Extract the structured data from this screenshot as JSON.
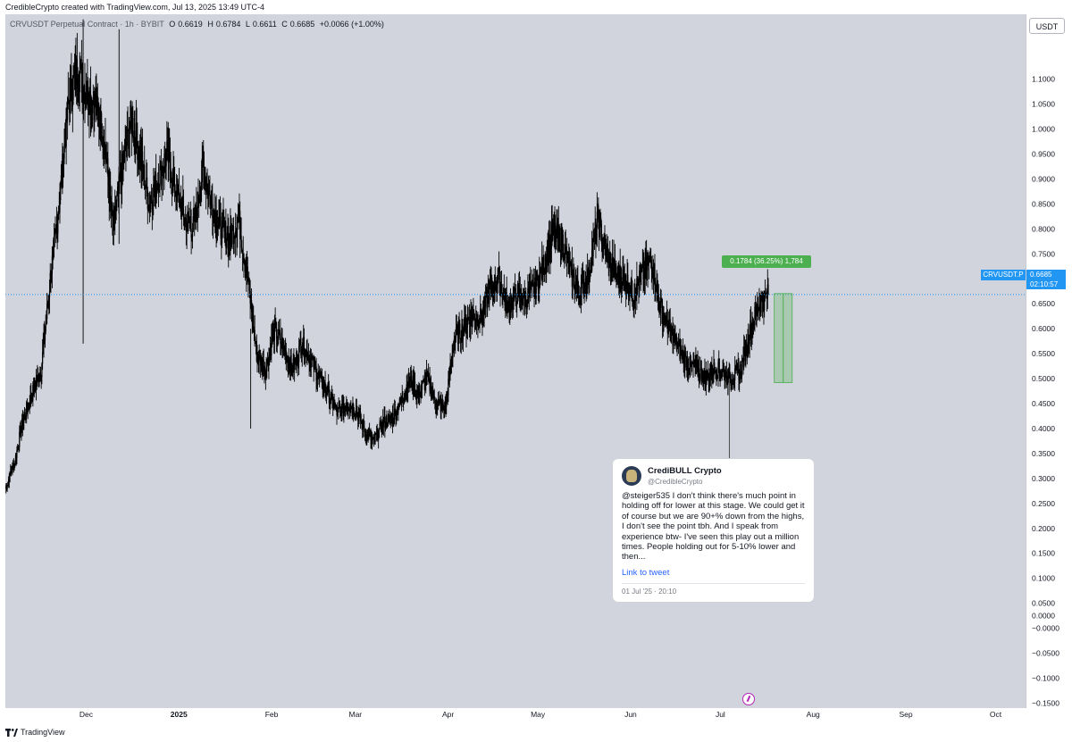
{
  "header": {
    "credit": "CredibleCrypto created with TradingView.com, Jul 13, 2025 13:49 UTC-4"
  },
  "legend": {
    "symbol": "CRVUSDT Perpetual Contract · 1h · BYBIT",
    "o_label": "O",
    "o": "0.6619",
    "h_label": "H",
    "h": "0.6784",
    "l_label": "L",
    "l": "0.6611",
    "c_label": "C",
    "c": "0.6685",
    "change": "+0.0066 (+1.00%)"
  },
  "axis": {
    "currency": "USDT",
    "last_price": "0.6685",
    "countdown": "02:10:57",
    "symbol_tag": "CRVUSDT.P"
  },
  "measure": {
    "label": "0.1784 (36.25%) 1,784"
  },
  "tweet": {
    "name": "CrediBULL Crypto",
    "handle": "@CredibleCrypto",
    "text": "@steiger535 I don't think there's much point in holding off for lower at this stage. We could get it of course but we are 90+% down from the highs, I don't see the point tbh. And I speak from experience btw- I've seen this play out a million times. People holding out for 5-10% lower and then...",
    "link": "Link to tweet",
    "date": "01 Jul '25 · 20:10"
  },
  "footer": {
    "brand": "TradingView"
  },
  "colors": {
    "plot_bg": "#d1d4dc",
    "candle": "#000000",
    "accent": "#2196f3",
    "measure": "#4caf50"
  },
  "chart_data": {
    "type": "line",
    "title": "",
    "xlabel": "",
    "ylabel": "",
    "ylim": [
      -0.16,
      1.23
    ],
    "y_ticks": [
      "1.1000",
      "1.0500",
      "1.0000",
      "0.9500",
      "0.9000",
      "0.8500",
      "0.8000",
      "0.7500",
      "0.7000",
      "0.6500",
      "0.6000",
      "0.5500",
      "0.5000",
      "0.4500",
      "0.4000",
      "0.3500",
      "0.3000",
      "0.2500",
      "0.2000",
      "0.1500",
      "0.1000",
      "0.0500",
      "0.0000",
      "−0.0000",
      "−0.0500",
      "−0.1000",
      "−0.1500"
    ],
    "y_tick_values": [
      1.1,
      1.05,
      1.0,
      0.95,
      0.9,
      0.85,
      0.8,
      0.75,
      0.7,
      0.65,
      0.6,
      0.55,
      0.5,
      0.45,
      0.4,
      0.35,
      0.3,
      0.25,
      0.2,
      0.15,
      0.1,
      0.05,
      0.0,
      0.0,
      -0.05,
      -0.1,
      -0.15
    ],
    "x_ticks": [
      "Dec",
      "2025",
      "Feb",
      "Mar",
      "Apr",
      "May",
      "Jun",
      "Jul",
      "Aug",
      "Sep",
      "Oct"
    ],
    "x_tick_days": [
      0,
      31,
      62,
      90,
      121,
      151,
      182,
      212,
      243,
      274,
      304
    ],
    "x_range_days": [
      -27,
      314
    ],
    "series": [
      {
        "x": [
          -27,
          -24,
          -21,
          -18,
          -15,
          -12,
          -9,
          -6,
          -3,
          0,
          3,
          6,
          9,
          12,
          15,
          18,
          21,
          24,
          27,
          30,
          33,
          36,
          39,
          42,
          45,
          48,
          51,
          54,
          57,
          60,
          63,
          66,
          69,
          72,
          75,
          78,
          81,
          84,
          87,
          90,
          93,
          96,
          99,
          102,
          105,
          108,
          111,
          114,
          117,
          120,
          123,
          126,
          129,
          132,
          135,
          138,
          141,
          144,
          147,
          150,
          153,
          156,
          159,
          162,
          165,
          168,
          171,
          174,
          177,
          180,
          183,
          186,
          189,
          192,
          195,
          198,
          201,
          204,
          207,
          210,
          213,
          216,
          219,
          222,
          225,
          228
        ],
        "y": [
          0.28,
          0.33,
          0.42,
          0.47,
          0.52,
          0.7,
          0.85,
          1.05,
          1.12,
          1.08,
          1.05,
          0.98,
          0.8,
          0.92,
          1.02,
          0.95,
          0.85,
          0.9,
          0.95,
          0.88,
          0.82,
          0.8,
          0.92,
          0.85,
          0.8,
          0.78,
          0.82,
          0.7,
          0.55,
          0.52,
          0.6,
          0.56,
          0.52,
          0.57,
          0.54,
          0.5,
          0.47,
          0.43,
          0.45,
          0.44,
          0.4,
          0.37,
          0.41,
          0.42,
          0.45,
          0.5,
          0.47,
          0.5,
          0.45,
          0.44,
          0.58,
          0.6,
          0.63,
          0.62,
          0.68,
          0.7,
          0.64,
          0.67,
          0.66,
          0.68,
          0.73,
          0.79,
          0.78,
          0.71,
          0.67,
          0.71,
          0.82,
          0.75,
          0.71,
          0.7,
          0.67,
          0.71,
          0.74,
          0.64,
          0.6,
          0.56,
          0.53,
          0.52,
          0.5,
          0.52,
          0.51,
          0.5,
          0.52,
          0.6,
          0.65,
          0.6685
        ]
      }
    ],
    "measure": {
      "from": 0.492,
      "to": 0.6704,
      "from_day": 230,
      "to_day": 236
    },
    "last_price": 0.6685,
    "grid": false,
    "legend_placement": "top-left"
  }
}
